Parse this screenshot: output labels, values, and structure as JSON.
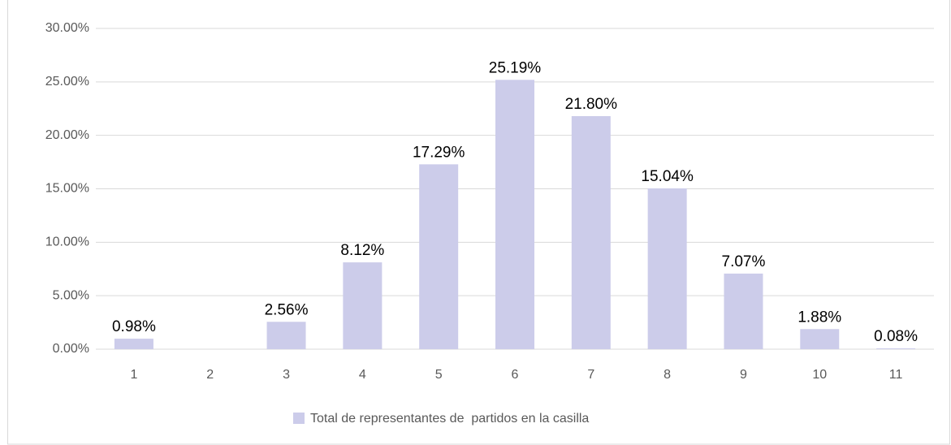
{
  "chart_data": {
    "type": "bar",
    "categories": [
      "1",
      "2",
      "3",
      "4",
      "5",
      "6",
      "7",
      "8",
      "9",
      "10",
      "11"
    ],
    "series": [
      {
        "name": "Total de representantes de  partidos en la casilla",
        "color": "#ccccea",
        "values": [
          0.98,
          null,
          2.56,
          8.12,
          17.29,
          25.19,
          21.8,
          15.04,
          7.07,
          1.88,
          0.08
        ],
        "value_labels": [
          "0.98%",
          null,
          "2.56%",
          "8.12%",
          "17.29%",
          "25.19%",
          "21.80%",
          "15.04%",
          "7.07%",
          "1.88%",
          "0.08%"
        ]
      }
    ],
    "ylim": [
      0,
      30
    ],
    "yticks": [
      {
        "value": 0,
        "label": "0.00%"
      },
      {
        "value": 5,
        "label": "5.00%"
      },
      {
        "value": 10,
        "label": "10.00%"
      },
      {
        "value": 15,
        "label": "15.00%"
      },
      {
        "value": 20,
        "label": "20.00%"
      },
      {
        "value": 25,
        "label": "25.00%"
      },
      {
        "value": 30,
        "label": "30.00%"
      }
    ],
    "grid": true,
    "legend": "bottom"
  }
}
